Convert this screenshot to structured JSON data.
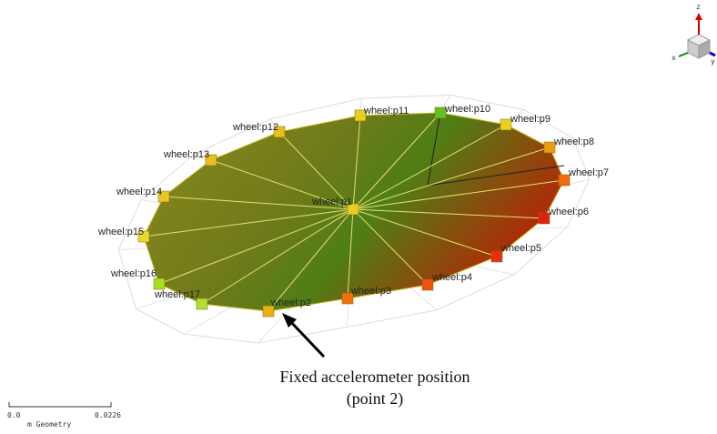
{
  "nodes": [
    {
      "label": "wheel:p1"
    },
    {
      "label": "wheel:p2"
    },
    {
      "label": "wheel:p3"
    },
    {
      "label": "wheel:p4"
    },
    {
      "label": "wheel:p5"
    },
    {
      "label": "wheel:p6"
    },
    {
      "label": "wheel:p7"
    },
    {
      "label": "wheel:p8"
    },
    {
      "label": "wheel:p9"
    },
    {
      "label": "wheel:p10"
    },
    {
      "label": "wheel:p11"
    },
    {
      "label": "wheel:p12"
    },
    {
      "label": "wheel:p13"
    },
    {
      "label": "wheel:p14"
    },
    {
      "label": "wheel:p15"
    },
    {
      "label": "wheel:p16"
    },
    {
      "label": "wheel:p17"
    }
  ],
  "annotation": {
    "line1": "Fixed accelerometer position",
    "line2": "(point 2)"
  },
  "scale": {
    "start": "0.0",
    "end": "0.0226",
    "unit": "m Geometry"
  },
  "axes": {
    "z": "z",
    "x": "x",
    "y": "y"
  }
}
